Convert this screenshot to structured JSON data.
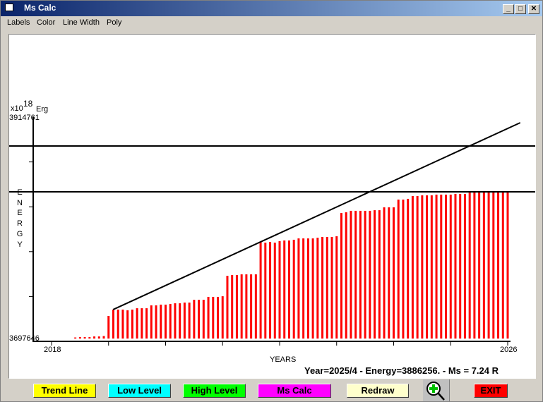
{
  "window": {
    "title": "Ms Calc",
    "controls": {
      "minimize": "_",
      "maximize": "□",
      "close": "✕"
    }
  },
  "menu": [
    "Labels",
    "Color",
    "Line Width",
    "Poly"
  ],
  "colors": {
    "bars": "#ff0000",
    "lines": "#000000",
    "trend_button": "#ffff00",
    "low_button": "#00ffff",
    "high_button": "#00ff00",
    "mscalc_button": "#ff00ff",
    "redraw_button": "#ffffcc",
    "exit_button": "#ff0000"
  },
  "chart_data": {
    "type": "bar",
    "unit_prefix": "x10",
    "unit_exp": "18",
    "unit": "Erg",
    "ylabel": "ENERGY",
    "xlabel": "YEARS",
    "ylim": [
      3697646,
      3914761
    ],
    "ymax_label": "3914761",
    "ymin_label": "3697646",
    "xlim": [
      2018,
      2026
    ],
    "xtick_labels": {
      "start": "2018",
      "end": "2026"
    },
    "bars_start": "2018/6",
    "bars_interval": "month",
    "values": [
      3701400,
      3701700,
      3701700,
      3701700,
      3702400,
      3702400,
      3702800,
      3722200,
      3728400,
      3728400,
      3728400,
      3727700,
      3728400,
      3729700,
      3729700,
      3729700,
      3732500,
      3732500,
      3733200,
      3733200,
      3733800,
      3734500,
      3734500,
      3735200,
      3735200,
      3737900,
      3737900,
      3737900,
      3740700,
      3740700,
      3740700,
      3741300,
      3761100,
      3761800,
      3761800,
      3762500,
      3762500,
      3762500,
      3762500,
      3793900,
      3793200,
      3793900,
      3793200,
      3794600,
      3795300,
      3795300,
      3796000,
      3797300,
      3797300,
      3797300,
      3797300,
      3798000,
      3798700,
      3798700,
      3798700,
      3799400,
      3821900,
      3822600,
      3824000,
      3824000,
      3824000,
      3824000,
      3824000,
      3824600,
      3824600,
      3827400,
      3827400,
      3827400,
      3834900,
      3834900,
      3835600,
      3838300,
      3838300,
      3839000,
      3839000,
      3839000,
      3839700,
      3839700,
      3839700,
      3839700,
      3840400,
      3840400,
      3840400,
      3842400,
      3842400,
      3842400,
      3842400,
      3842400,
      3842400,
      3842400,
      3842400,
      3842400
    ],
    "trend_line": {
      "x": [
        2019.08,
        2026.22
      ],
      "y": [
        3728400,
        3909300
      ]
    },
    "high_level": 3886800,
    "low_level": 3842400,
    "grid": false
  },
  "status": "Year=2025/4 - Energy=3886256. - Ms = 7.24 R",
  "buttons": {
    "trend": "Trend Line",
    "low": "Low Level",
    "high": "High Level",
    "mscalc": "Ms Calc",
    "redraw": "Redraw",
    "zoom": "zoom-in-icon",
    "exit": "EXIT"
  }
}
